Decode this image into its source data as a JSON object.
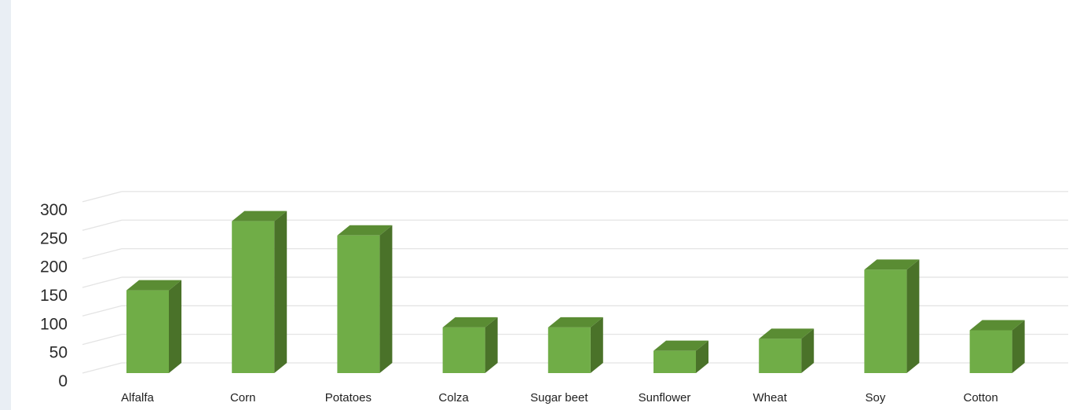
{
  "chart_data": {
    "type": "bar",
    "style": "3d-column",
    "categories": [
      "Alfalfa",
      "Corn",
      "Potatoes",
      "Colza",
      "Sugar beet",
      "Sunflower",
      "Wheat",
      "Soy",
      "Cotton"
    ],
    "values": [
      145,
      266,
      241,
      80,
      80,
      39,
      60,
      181,
      75
    ],
    "ylim": [
      0,
      300
    ],
    "yticks": [
      "0",
      "50",
      "100",
      "150",
      "200",
      "250",
      "300"
    ],
    "grid": true,
    "legend": "none",
    "colors": {
      "bar_front": "#70ad47",
      "bar_side": "#4a7229",
      "bar_top": "#5a8c33",
      "gridline": "#e4e4e4"
    }
  }
}
